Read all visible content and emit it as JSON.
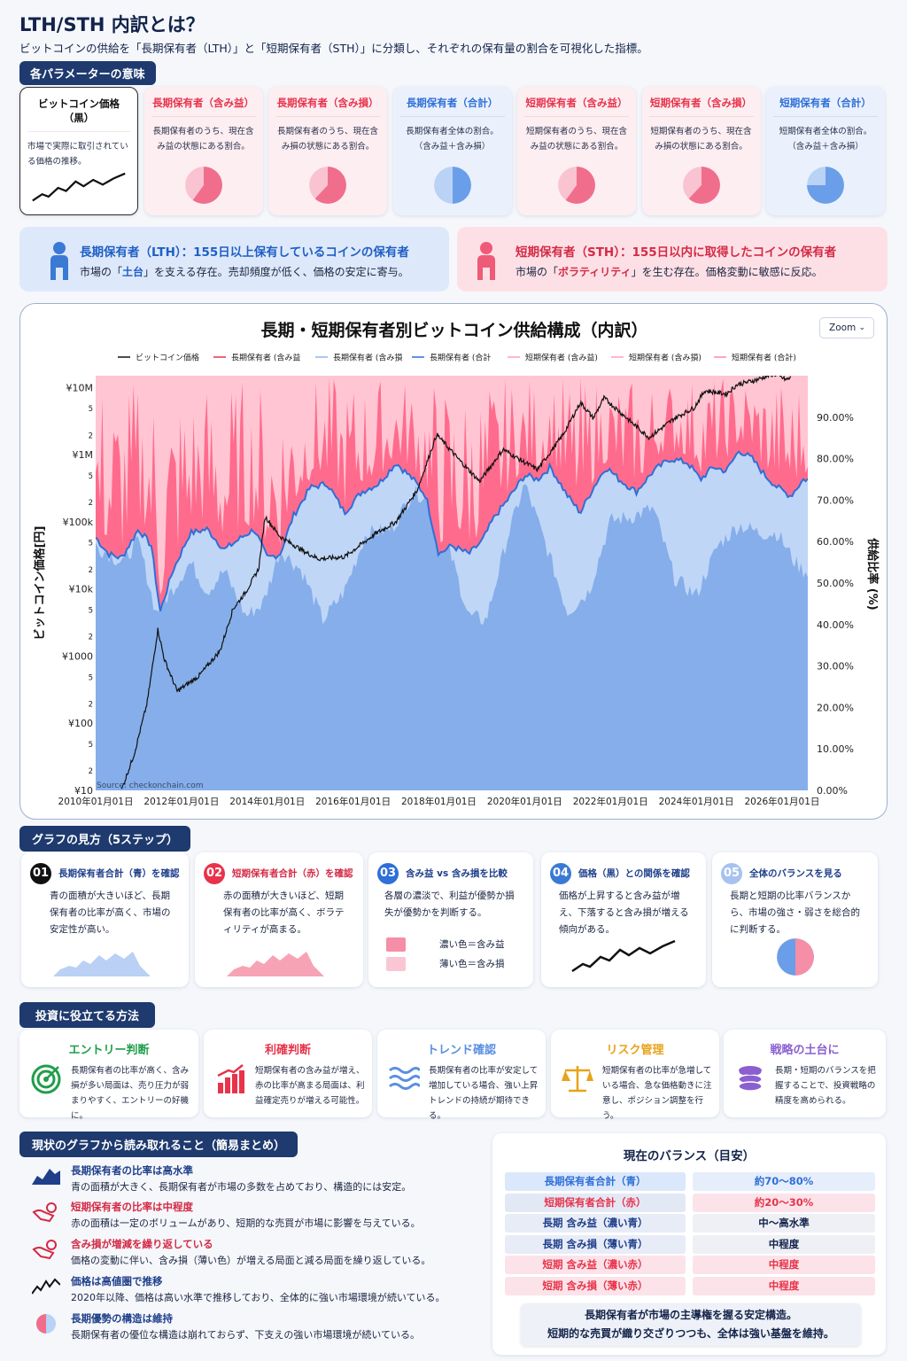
{
  "header": {
    "title": "LTH/STH 内訳とは？",
    "subtitle": "ビットコインの供給を「長期保有者（LTH）」と「短期保有者（STH）」に分類し、それぞれの保有量の割合を可視化した指標。"
  },
  "params": {
    "heading": "各パラメーターの意味",
    "cards": [
      {
        "title": "ビットコイン価格（黒）",
        "desc": "市場で実際に取引されている価格の推移。",
        "icon": "price-line-icon",
        "color": "#111111"
      },
      {
        "title": "長期保有者（含み益）",
        "desc": "長期保有者のうち、現在含み益の状態にある割合。",
        "icon": "pie-chart-icon",
        "color": "#e8334a"
      },
      {
        "title": "長期保有者（含み損）",
        "desc": "長期保有者のうち、現在含み損の状態にある割合。",
        "icon": "pie-chart-icon",
        "color": "#e8334a"
      },
      {
        "title": "長期保有者（合計）",
        "desc": "長期保有者全体の割合。（含み益＋含み損）",
        "icon": "pie-chart-icon",
        "color": "#2e6fd8"
      },
      {
        "title": "短期保有者（含み益）",
        "desc": "短期保有者のうち、現在含み益の状態にある割合。",
        "icon": "pie-chart-icon",
        "color": "#e8334a"
      },
      {
        "title": "短期保有者（含み損）",
        "desc": "短期保有者のうち、現在含み損の状態にある割合。",
        "icon": "pie-chart-icon",
        "color": "#e8334a"
      },
      {
        "title": "短期保有者（合計）",
        "desc": "短期保有者全体の割合。（含み益＋含み損）",
        "icon": "pie-chart-icon",
        "color": "#2e6fd8"
      }
    ]
  },
  "banners": {
    "lth": {
      "title": "長期保有者（LTH）：155日以上保有しているコインの保有者",
      "desc_pre": "市場の「",
      "desc_em": "土台",
      "desc_post": "」を支える存在。売却頻度が低く、価格の安定に寄与。"
    },
    "sth": {
      "title": "短期保有者（STH）：155日以内に取得したコインの保有者",
      "desc_pre": "市場の「",
      "desc_em": "ボラティリティ",
      "desc_post": "」を生む存在。価格変動に敏感に反応。"
    }
  },
  "chart": {
    "zoom_label": "Zoom",
    "source": "Source: checkonchain.com",
    "legend": [
      "ビットコイン価格",
      "長期保有者 (含み益",
      "長期保有者 (含み損",
      "長期保有者 (合計",
      "短期保有者 (含み益)",
      "短期保有者 (含み損)",
      "短期保有者 (合計)"
    ]
  },
  "chart_data": {
    "type": "area",
    "title": "長期・短期保有者別ビットコイン供給構成（内訳）",
    "xlabel": "",
    "ylabel": "ビットコイン価格[円]",
    "y2label": "供給比率 (%)",
    "x_ticks": [
      "2010年01月01日",
      "2012年01月01日",
      "2014年01月01日",
      "2016年01月01日",
      "2018年01月01日",
      "2020年01月01日",
      "2022年01月01日",
      "2024年01月01日",
      "2026年01月01日"
    ],
    "y_left_ticks": [
      "¥10",
      "2",
      "5",
      "¥100",
      "2",
      "5",
      "¥1000",
      "2",
      "5",
      "¥10k",
      "2",
      "5",
      "¥100k",
      "2",
      "5",
      "¥1M",
      "2",
      "5",
      "¥10M"
    ],
    "y_right_ticks": [
      "0.00%",
      "10.00%",
      "20.00%",
      "30.00%",
      "40.00%",
      "50.00%",
      "60.00%",
      "70.00%",
      "80.00%",
      "90.00%"
    ],
    "y_left_scale": "log",
    "y_left_range": [
      10,
      15000000
    ],
    "y_right_range": [
      0,
      100
    ],
    "x_range": [
      2010.0,
      2026.6
    ],
    "series": [
      {
        "name": "ビットコイン価格",
        "color": "#111111",
        "axis": "left",
        "x": [
          2010.6,
          2010.9,
          2011.2,
          2011.45,
          2011.6,
          2011.9,
          2012.4,
          2012.9,
          2013.2,
          2013.5,
          2013.8,
          2013.95,
          2014.3,
          2014.9,
          2015.2,
          2015.8,
          2016.5,
          2017.0,
          2017.5,
          2017.95,
          2018.5,
          2018.95,
          2019.5,
          2019.95,
          2020.3,
          2020.9,
          2021.3,
          2021.6,
          2021.85,
          2022.5,
          2022.9,
          2023.5,
          2023.95,
          2024.2,
          2024.7,
          2024.95,
          2025.4,
          2025.8,
          2026.1,
          2026.2
        ],
        "y": [
          10,
          35,
          200,
          2500,
          900,
          300,
          500,
          1200,
          5000,
          9000,
          20000,
          120000,
          60000,
          35000,
          28000,
          30000,
          65000,
          100000,
          300000,
          2000000,
          800000,
          400000,
          1200000,
          800000,
          600000,
          2000000,
          6000000,
          3500000,
          7000000,
          3000000,
          1800000,
          3500000,
          5000000,
          9000000,
          8000000,
          11000000,
          13000000,
          16000000,
          13000000,
          14000000
        ]
      },
      {
        "name": "長期保有者 (合計",
        "color": "#2e6fd8",
        "axis": "right",
        "x": [
          2010.0,
          2010.3,
          2010.6,
          2011.0,
          2011.3,
          2011.5,
          2011.8,
          2012.2,
          2012.6,
          2013.0,
          2013.4,
          2013.7,
          2014.0,
          2014.3,
          2014.6,
          2015.0,
          2015.4,
          2015.8,
          2016.2,
          2016.6,
          2017.0,
          2017.4,
          2017.7,
          2018.0,
          2018.3,
          2018.7,
          2019.0,
          2019.3,
          2019.6,
          2020.0,
          2020.3,
          2020.6,
          2021.0,
          2021.3,
          2021.6,
          2021.9,
          2022.2,
          2022.6,
          2023.0,
          2023.4,
          2023.8,
          2024.1,
          2024.4,
          2024.7,
          2025.0,
          2025.3,
          2025.6,
          2025.9,
          2026.2,
          2026.5
        ],
        "y": [
          61,
          57,
          56,
          63,
          59,
          43,
          53,
          62,
          63,
          58,
          61,
          63,
          56,
          57,
          66,
          73,
          74,
          67,
          72,
          74,
          79,
          75,
          71,
          57,
          59,
          57,
          60,
          66,
          70,
          76,
          75,
          78,
          71,
          67,
          73,
          78,
          75,
          72,
          77,
          80,
          79,
          75,
          78,
          77,
          82,
          80,
          76,
          73,
          71,
          75
        ]
      },
      {
        "name": "長期保有者 (含み益",
        "color": "#8fb3ee",
        "axis": "right",
        "x": [
          2010.0,
          2010.6,
          2011.0,
          2011.4,
          2011.7,
          2012.2,
          2012.6,
          2013.0,
          2013.5,
          2013.9,
          2014.3,
          2014.8,
          2015.3,
          2015.8,
          2016.3,
          2016.9,
          2017.4,
          2017.9,
          2018.3,
          2018.7,
          2019.1,
          2019.6,
          2020.0,
          2020.5,
          2021.0,
          2021.5,
          2022.0,
          2022.5,
          2023.0,
          2023.5,
          2024.0,
          2024.5,
          2025.0,
          2025.5,
          2025.9,
          2026.3,
          2026.5
        ],
        "y": [
          59,
          55,
          60,
          43,
          47,
          55,
          48,
          53,
          42,
          45,
          58,
          53,
          41,
          48,
          62,
          63,
          72,
          70,
          56,
          42,
          41,
          61,
          74,
          59,
          43,
          48,
          65,
          66,
          68,
          51,
          47,
          59,
          64,
          62,
          62,
          55,
          53
        ]
      }
    ],
    "shaded_areas": [
      {
        "name": "長期保有者 (含み損",
        "color": "#bfd6f7",
        "note": "between 長期保有者 (含み益 and 長期保有者 (合計"
      },
      {
        "name": "短期保有者 (含み益)",
        "color": "#ff6b8d",
        "note": "spiky region above 長期保有者 (合計"
      },
      {
        "name": "短期保有者 (含み損)",
        "color": "#ffc5d2",
        "note": "top region"
      }
    ],
    "grid": false,
    "legend_position": "top"
  },
  "steps": {
    "heading": "グラフの見方（5ステップ）",
    "items": [
      {
        "num": "01",
        "title": "長期保有者合計（青）を確認",
        "desc": "青の面積が大きいほど、長期保有者の比率が高く、市場の安定性が高い。",
        "color": "#111111",
        "title_color": "#1f3f8a"
      },
      {
        "num": "02",
        "title": "短期保有者合計（赤）を確認",
        "desc": "赤の面積が大きいほど、短期保有者の比率が高く、ボラティリティが高まる。",
        "color": "#e8334a",
        "title_color": "#d42a45"
      },
      {
        "num": "03",
        "title": "含み益 vs 含み損を比較",
        "desc": "各層の濃淡で、利益が優勢か損失が優勢かを判断する。",
        "color": "#2e6fd8",
        "title_color": "#1f3f8a",
        "legend_dark": "濃い色＝含み益",
        "legend_light": "薄い色＝含み損"
      },
      {
        "num": "04",
        "title": "価格（黒）との関係を確認",
        "desc": "価格が上昇すると含み益が増え、下落すると含み損が増える傾向がある。",
        "color": "#3b7ad4",
        "title_color": "#1f3f8a"
      },
      {
        "num": "05",
        "title": "全体のバランスを見る",
        "desc": "長期と短期の比率バランスから、市場の強さ・弱さを総合的に判断する。",
        "color": "#a7c2ef",
        "title_color": "#1f3f8a"
      }
    ]
  },
  "invest": {
    "heading": "投資に役立てる方法",
    "items": [
      {
        "title": "エントリー判断",
        "desc": "長期保有者の比率が高く、含み損が多い局面は、売り圧力が弱まりやすく、エントリーの好機に。",
        "icon": "target-icon",
        "color": "#1f9e4a"
      },
      {
        "title": "利確判断",
        "desc": "短期保有者の含み益が増え、赤の比率が高まる局面は、利益確定売りが増える可能性。",
        "icon": "bar-chart-up-icon",
        "color": "#e8334a"
      },
      {
        "title": "トレンド確認",
        "desc": "長期保有者の比率が安定して増加している場合、強い上昇トレンドの持続が期待できる。",
        "icon": "wave-icon",
        "color": "#5b8fe0"
      },
      {
        "title": "リスク管理",
        "desc": "短期保有者の比率が急増している場合、急な価格動きに注意し、ポジション調整を行う。",
        "icon": "scale-icon",
        "color": "#e8a21a"
      },
      {
        "title": "戦略の土台に",
        "desc": "長期・短期のバランスを把握することで、投資戦略の精度を高められる。",
        "icon": "database-icon",
        "color": "#8b5fd0"
      }
    ]
  },
  "summary": {
    "heading": "現状のグラフから読み取れること（簡易まとめ）",
    "items": [
      {
        "title": "長期保有者の比率は高水準",
        "desc": "青の面積が大きく、長期保有者が市場の多数を占めており、構造的には安定。",
        "icon": "area-chart-icon",
        "color": "#1f3f8a"
      },
      {
        "title": "短期保有者の比率は中程度",
        "desc": "赤の面積は一定のボリュームがあり、短期的な売買が市場に影響を与えている。",
        "icon": "hand-coin-icon",
        "color": "#d42a45"
      },
      {
        "title": "含み損が増減を繰り返している",
        "desc": "価格の変動に伴い、含み損（薄い色）が増える局面と減る局面を繰り返している。",
        "icon": "hand-coin-icon",
        "color": "#d42a45"
      },
      {
        "title": "価格は高値圏で推移",
        "desc": "2020年以降、価格は高い水準で推移しており、全体的に強い市場環境が続いている。",
        "icon": "price-line-icon",
        "color": "#1f3f8a"
      },
      {
        "title": "長期優勢の構造は維持",
        "desc": "長期保有者の優位な構造は崩れておらず、下支えの強い市場環境が続いている。",
        "icon": "half-circle-icon",
        "color": "#1f3f8a"
      }
    ]
  },
  "balance": {
    "heading": "現在のバランス（目安）",
    "rows": [
      {
        "label": "長期保有者合計（青）",
        "value": "約70～80%",
        "color": "#2e6fd8"
      },
      {
        "label": "短期保有者合計（赤）",
        "value": "約20～30%",
        "color": "#e8334a"
      },
      {
        "label": "長期 含み益（濃い青）",
        "value": "中～高水準",
        "color": "#1f3f8a"
      },
      {
        "label": "長期 含み損（薄い青）",
        "value": "中程度",
        "color": "#1f3f8a"
      },
      {
        "label": "短期 含み益（濃い赤）",
        "value": "中程度",
        "color": "#e8334a"
      },
      {
        "label": "短期 含み損（薄い赤）",
        "value": "中程度",
        "color": "#e8334a"
      }
    ],
    "note_line1": "長期保有者が市場の主導権を握る安定構造。",
    "note_line2": "短期的な売買が織り交ざりつつも、全体は強い基盤を維持。"
  }
}
